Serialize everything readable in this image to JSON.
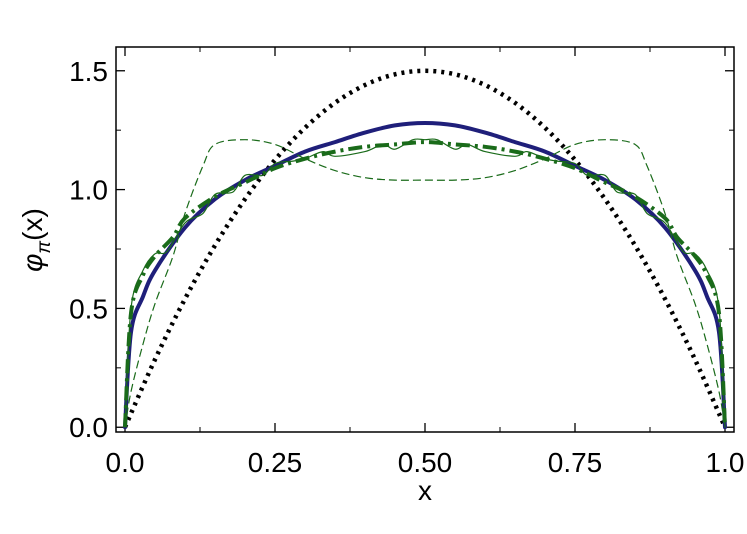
{
  "chart_data": {
    "type": "line",
    "title": "",
    "xlabel": "x",
    "ylabel": "φπ(x)",
    "ylabel_main": "φ",
    "ylabel_sub": "π",
    "ylabel_rest": "(x)",
    "xlim": [
      0,
      1
    ],
    "ylim": [
      -0.02,
      1.6
    ],
    "xticks": [
      0.0,
      0.25,
      0.5,
      0.75,
      1.0
    ],
    "xtick_labels": [
      "0.0",
      "0.25",
      "0.50",
      "0.75",
      "1.0"
    ],
    "yticks": [
      0.0,
      0.5,
      1.0,
      1.5
    ],
    "ytick_labels": [
      "0.0",
      "0.5",
      "1.0",
      "1.5"
    ],
    "grid": false,
    "legend": "none",
    "series": [
      {
        "style": "dotted",
        "color": "#000000",
        "x": [
          0,
          0.05,
          0.1,
          0.15,
          0.2,
          0.25,
          0.3,
          0.35,
          0.4,
          0.45,
          0.5,
          0.55,
          0.6,
          0.65,
          0.7,
          0.75,
          0.8,
          0.85,
          0.9,
          0.95,
          1
        ],
        "y": [
          0,
          0.285,
          0.54,
          0.765,
          0.96,
          1.125,
          1.26,
          1.365,
          1.44,
          1.485,
          1.5,
          1.485,
          1.44,
          1.365,
          1.26,
          1.125,
          0.96,
          0.765,
          0.54,
          0.285,
          0
        ]
      },
      {
        "style": "solid-thick",
        "color": "#1f1f7a",
        "x": [
          0,
          0.01,
          0.03,
          0.05,
          0.1,
          0.15,
          0.2,
          0.25,
          0.3,
          0.35,
          0.4,
          0.45,
          0.5,
          0.55,
          0.6,
          0.65,
          0.7,
          0.75,
          0.8,
          0.85,
          0.9,
          0.95,
          0.97,
          0.99,
          1
        ],
        "y": [
          0,
          0.4,
          0.55,
          0.66,
          0.84,
          0.96,
          1.04,
          1.1,
          1.16,
          1.2,
          1.24,
          1.27,
          1.28,
          1.27,
          1.24,
          1.2,
          1.16,
          1.1,
          1.04,
          0.96,
          0.84,
          0.66,
          0.55,
          0.4,
          0
        ]
      },
      {
        "style": "dash-dot-thick",
        "color": "#1a6b1a",
        "x": [
          0,
          0.01,
          0.03,
          0.05,
          0.08,
          0.1,
          0.15,
          0.2,
          0.25,
          0.3,
          0.35,
          0.4,
          0.45,
          0.5,
          0.55,
          0.6,
          0.65,
          0.7,
          0.75,
          0.8,
          0.85,
          0.9,
          0.92,
          0.95,
          0.97,
          0.99,
          1
        ],
        "y": [
          0,
          0.48,
          0.64,
          0.72,
          0.8,
          0.88,
          0.97,
          1.03,
          1.09,
          1.13,
          1.16,
          1.18,
          1.19,
          1.2,
          1.19,
          1.18,
          1.16,
          1.13,
          1.09,
          1.03,
          0.97,
          0.88,
          0.8,
          0.72,
          0.64,
          0.48,
          0
        ]
      },
      {
        "style": "solid-thin",
        "color": "#1a6b1a",
        "x": [
          0,
          0.01,
          0.03,
          0.05,
          0.07,
          0.1,
          0.13,
          0.15,
          0.18,
          0.2,
          0.23,
          0.25,
          0.28,
          0.3,
          0.33,
          0.35,
          0.4,
          0.43,
          0.45,
          0.48,
          0.5,
          0.52,
          0.55,
          0.57,
          0.6,
          0.65,
          0.67,
          0.7,
          0.72,
          0.75,
          0.77,
          0.8,
          0.82,
          0.85,
          0.87,
          0.9,
          0.93,
          0.95,
          0.97,
          0.99,
          1
        ],
        "y": [
          0,
          0.5,
          0.66,
          0.73,
          0.74,
          0.86,
          0.9,
          0.98,
          0.99,
          1.06,
          1.06,
          1.11,
          1.12,
          1.13,
          1.16,
          1.14,
          1.16,
          1.19,
          1.17,
          1.21,
          1.21,
          1.21,
          1.17,
          1.19,
          1.16,
          1.14,
          1.16,
          1.13,
          1.12,
          1.11,
          1.06,
          1.06,
          0.99,
          0.98,
          0.9,
          0.86,
          0.74,
          0.73,
          0.66,
          0.5,
          0
        ]
      },
      {
        "style": "dashed-thin",
        "color": "#1a6b1a",
        "x": [
          0,
          0.01,
          0.03,
          0.05,
          0.08,
          0.1,
          0.13,
          0.15,
          0.2,
          0.25,
          0.3,
          0.35,
          0.4,
          0.45,
          0.5,
          0.55,
          0.6,
          0.65,
          0.7,
          0.75,
          0.8,
          0.85,
          0.87,
          0.9,
          0.92,
          0.95,
          0.97,
          0.99,
          1
        ],
        "y": [
          0,
          0.15,
          0.35,
          0.52,
          0.72,
          0.9,
          1.1,
          1.19,
          1.21,
          1.19,
          1.13,
          1.08,
          1.05,
          1.04,
          1.04,
          1.04,
          1.05,
          1.08,
          1.13,
          1.19,
          1.21,
          1.19,
          1.1,
          0.9,
          0.72,
          0.52,
          0.35,
          0.15,
          0
        ]
      }
    ]
  }
}
